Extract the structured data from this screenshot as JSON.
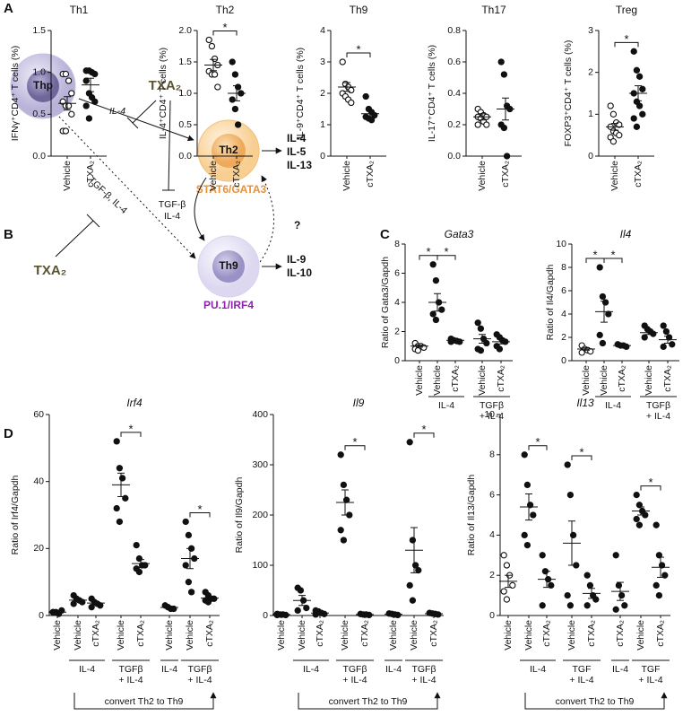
{
  "panel_labels": [
    "A",
    "B",
    "C",
    "D"
  ],
  "diagram": {
    "cells": [
      "Thp",
      "Th2",
      "Th9"
    ],
    "inhibitors": [
      "TXA₂",
      "TXA₂"
    ],
    "thp_th2": "IL-4",
    "th2_th9": [
      "TGF-β",
      "IL-4"
    ],
    "thp_th9": "TGF-β, IL-4",
    "th9_th2": "?",
    "transcription_factors": [
      "STAT6/GATA3",
      "PU.1/IRF4"
    ],
    "th2_cytokines": [
      "IL-4",
      "IL-5",
      "IL-13"
    ],
    "th9_cytokines": [
      "IL-9",
      "IL-10"
    ]
  },
  "chart_data": [
    {
      "type": "dotplot",
      "title": "Th1",
      "ylabel": "IFNγ⁺CD4⁺ T cells (%)",
      "categories": [
        "Vehicle",
        "cTXA₂"
      ],
      "markers": [
        "open",
        "filled"
      ],
      "points": [
        [
          0.98,
          0.98,
          0.9,
          0.75,
          0.65,
          0.6,
          0.6,
          0.5,
          0.3,
          0.3
        ],
        [
          1.02,
          1.02,
          1.0,
          0.98,
          0.9,
          0.75,
          0.7,
          0.65,
          0.6,
          0.45
        ]
      ],
      "means": [
        0.63,
        0.85
      ],
      "sems": [
        0.08,
        0.08
      ],
      "ylim": [
        0,
        1.5
      ],
      "yticks": [
        {
          "value": 0,
          "label": "0.0"
        },
        0.5,
        {
          "value": 1,
          "label": "1.0"
        },
        1.5
      ],
      "significance": []
    },
    {
      "type": "dotplot",
      "title": "Th2",
      "ylabel": "IL-4⁺CD4⁺ T cells (%)",
      "categories": [
        "Vehicle",
        "cTXA₂"
      ],
      "markers": [
        "open",
        "filled"
      ],
      "points": [
        [
          1.85,
          1.75,
          1.55,
          1.45,
          1.35,
          1.3,
          1.3,
          1.1
        ],
        [
          1.5,
          1.3,
          1.1,
          1.0,
          0.9,
          0.75,
          0.5
        ]
      ],
      "means": [
        1.45,
        1.0
      ],
      "sems": [
        0.09,
        0.12
      ],
      "ylim": [
        0,
        2
      ],
      "yticks": [
        {
          "value": 0,
          "label": "0.0"
        },
        0.5,
        {
          "value": 1,
          "label": "1.0"
        },
        1.5,
        {
          "value": 2,
          "label": "2.0"
        }
      ],
      "significance": [
        {
          "label": "*",
          "between": [
            0,
            1
          ]
        }
      ]
    },
    {
      "type": "dotplot",
      "title": "Th9",
      "ylabel": "IL-9⁺CD4⁺ T cells (%)",
      "categories": [
        "Vehicle",
        "cTXA₂"
      ],
      "markers": [
        "open",
        "filled"
      ],
      "points": [
        [
          3.0,
          2.3,
          2.2,
          2.1,
          2.0,
          1.9,
          1.8,
          1.7
        ],
        [
          1.9,
          1.5,
          1.4,
          1.3,
          1.25,
          1.2,
          1.15
        ]
      ],
      "means": [
        2.2,
        1.35
      ],
      "sems": [
        0.14,
        0.1
      ],
      "ylim": [
        0,
        4
      ],
      "yticks": [
        0,
        1,
        2,
        3,
        4
      ],
      "significance": [
        {
          "label": "*",
          "between": [
            0,
            1
          ]
        }
      ]
    },
    {
      "type": "dotplot",
      "title": "Th17",
      "ylabel": "IL-17⁺CD4⁺ T cells (%)",
      "categories": [
        "Vehicle",
        "cTXA₂"
      ],
      "markers": [
        "open",
        "filled"
      ],
      "points": [
        [
          0.3,
          0.28,
          0.26,
          0.25,
          0.25,
          0.24,
          0.22,
          0.2,
          0.2
        ],
        [
          0.6,
          0.52,
          0.32,
          0.3,
          0.2,
          0.18,
          0.0
        ]
      ],
      "means": [
        0.25,
        0.3
      ],
      "sems": [
        0.02,
        0.07
      ],
      "ylim": [
        0,
        0.8
      ],
      "yticks": [
        {
          "value": 0,
          "label": "0.0"
        },
        0.2,
        0.4,
        0.6,
        0.8
      ],
      "significance": []
    },
    {
      "type": "dotplot",
      "title": "Treg",
      "ylabel": "FOXP3⁺CD4⁺ T cells (%)",
      "categories": [
        "Vehicle",
        "cTXA₂"
      ],
      "markers": [
        "open",
        "filled"
      ],
      "points": [
        [
          1.2,
          1.0,
          0.8,
          0.75,
          0.7,
          0.6,
          0.55,
          0.5,
          0.45,
          0.35
        ],
        [
          2.5,
          2.05,
          1.9,
          1.6,
          1.5,
          1.3,
          1.2,
          1.0,
          0.9,
          0.7
        ]
      ],
      "means": [
        0.7,
        1.5
      ],
      "sems": [
        0.08,
        0.18
      ],
      "ylim": [
        0,
        3
      ],
      "yticks": [
        0,
        1,
        2,
        3
      ],
      "significance": [
        {
          "label": "*",
          "between": [
            0,
            1
          ]
        }
      ]
    },
    {
      "type": "dotplot",
      "title": "Gata3",
      "title_style": "italic",
      "ylabel": "Ratio of Gata3/Gapdh",
      "categories": [
        "Vehicle",
        "Vehicle",
        "cTXA₂",
        "Vehicle",
        "cTXA₂"
      ],
      "markers": [
        "open",
        "filled",
        "filled",
        "filled",
        "filled"
      ],
      "points": [
        [
          1.2,
          1.0,
          1.0,
          0.9,
          0.8,
          0.7
        ],
        [
          6.6,
          5.5,
          4.0,
          3.5,
          3.2,
          2.8
        ],
        [
          1.5,
          1.4,
          1.35,
          1.3,
          1.3
        ],
        [
          2.6,
          2.2,
          1.5,
          1.2,
          0.8,
          0.7
        ],
        [
          1.8,
          1.6,
          1.4,
          1.3,
          1.0,
          0.8
        ]
      ],
      "means": [
        1.0,
        4.0,
        1.4,
        1.5,
        1.3
      ],
      "sems": [
        0.07,
        0.6,
        0.05,
        0.3,
        0.15
      ],
      "ylim": [
        0,
        8
      ],
      "yticks": [
        0,
        2,
        4,
        6,
        8
      ],
      "groups": [
        {
          "label": [
            "IL-4"
          ],
          "categories": [
            1,
            2
          ]
        },
        {
          "label": [
            "TGFβ",
            "+ IL-4"
          ],
          "categories": [
            3,
            4
          ]
        }
      ],
      "significance": [
        {
          "label": "*",
          "between": [
            0,
            1
          ]
        },
        {
          "label": "*",
          "between": [
            1,
            2
          ]
        }
      ]
    },
    {
      "type": "dotplot",
      "title": "Il4",
      "title_style": "italic",
      "ylabel": "Ratio of Il4/Gapdh",
      "categories": [
        "Vehicle",
        "Vehicle",
        "cTXA₂",
        "Vehicle",
        "cTXA₂"
      ],
      "markers": [
        "open",
        "filled",
        "filled",
        "filled",
        "filled"
      ],
      "points": [
        [
          1.3,
          1.0,
          0.9,
          0.8,
          0.7
        ],
        [
          8.0,
          5.5,
          5.0,
          4.0,
          2.2,
          1.5
        ],
        [
          1.4,
          1.3,
          1.3,
          1.2
        ],
        [
          3.0,
          2.7,
          2.5,
          2.3,
          2.0
        ],
        [
          3.0,
          2.5,
          2.0,
          1.4,
          1.2
        ]
      ],
      "means": [
        1.0,
        4.2,
        1.3,
        2.4,
        1.8
      ],
      "sems": [
        0.1,
        0.9,
        0.05,
        0.15,
        0.3
      ],
      "ylim": [
        0,
        10
      ],
      "yticks": [
        0,
        2,
        4,
        6,
        8,
        10
      ],
      "groups": [
        {
          "label": [
            "IL-4"
          ],
          "categories": [
            1,
            2
          ]
        },
        {
          "label": [
            "TGFβ",
            "+ IL-4"
          ],
          "categories": [
            3,
            4
          ]
        }
      ],
      "significance": [
        {
          "label": "*",
          "between": [
            0,
            1
          ]
        },
        {
          "label": "*",
          "between": [
            1,
            2
          ]
        }
      ]
    },
    {
      "type": "dotplot",
      "title": "Irf4",
      "title_style": "italic",
      "ylabel": "Ratio of Irf4/Gapdh",
      "categories": [
        "Vehicle",
        "Vehicle",
        "cTXA₂",
        "Vehicle",
        "cTXA₂",
        "Vehicle",
        "Vehicle",
        "cTXA₂"
      ],
      "markers": [
        "filled",
        "filled",
        "filled",
        "filled",
        "filled",
        "filled",
        "filled",
        "filled"
      ],
      "points": [
        [
          1,
          1,
          0.5,
          1.5,
          1
        ],
        [
          6,
          5,
          4.5,
          4,
          3.5
        ],
        [
          5,
          4,
          3.5,
          3,
          2.5
        ],
        [
          52,
          44,
          41,
          35,
          32,
          28
        ],
        [
          21,
          17,
          15,
          15,
          14,
          13
        ],
        [
          3,
          2.5,
          2,
          2
        ],
        [
          28,
          24,
          20,
          17,
          15,
          10,
          7
        ],
        [
          7,
          6,
          5,
          5,
          4.5,
          4
        ]
      ],
      "means": [
        1,
        4.6,
        3.7,
        39,
        15.5,
        2.4,
        17,
        5.2
      ],
      "sems": [
        0.2,
        0.4,
        0.4,
        3.5,
        1.2,
        0.3,
        3,
        0.4
      ],
      "ylim": [
        0,
        60
      ],
      "yticks": [
        0,
        20,
        40,
        60
      ],
      "groups": [
        {
          "label": [
            "IL-4"
          ],
          "categories": [
            1,
            2
          ]
        },
        {
          "label": [
            "TGFβ",
            "+ IL-4"
          ],
          "categories": [
            3,
            4
          ]
        },
        {
          "label": [
            "IL-4"
          ],
          "categories": [
            5
          ]
        },
        {
          "label": [
            "TGFβ",
            "+ IL-4"
          ],
          "categories": [
            6,
            7
          ]
        }
      ],
      "significance": [
        {
          "label": "*",
          "between": [
            3,
            4
          ]
        },
        {
          "label": "*",
          "between": [
            6,
            7
          ]
        }
      ],
      "bracket": {
        "label": "convert Th2 to Th9",
        "categories": [
          1,
          7
        ]
      }
    },
    {
      "type": "dotplot",
      "title": "Il9",
      "title_style": "italic",
      "ylabel": "Ratio of Il9/Gapdh",
      "categories": [
        "Vehicle",
        "Vehicle",
        "cTXA₂",
        "Vehicle",
        "cTXA₂",
        "Vehicle",
        "Vehicle",
        "cTXA₂"
      ],
      "markers": [
        "filled",
        "filled",
        "filled",
        "filled",
        "filled",
        "filled",
        "filled",
        "filled"
      ],
      "points": [
        [
          3,
          2,
          2,
          1,
          1
        ],
        [
          55,
          50,
          30,
          15,
          10
        ],
        [
          10,
          8,
          5,
          3,
          2
        ],
        [
          320,
          260,
          230,
          200,
          170,
          150
        ],
        [
          3,
          2,
          2,
          1
        ],
        [
          4,
          3,
          2,
          1
        ],
        [
          345,
          150,
          100,
          90,
          60,
          30
        ],
        [
          5,
          4,
          3,
          2
        ]
      ],
      "means": [
        2,
        30,
        5,
        225,
        2,
        2.5,
        130,
        3.5
      ],
      "sems": [
        0.4,
        10,
        2,
        25,
        0.5,
        0.6,
        45,
        0.6
      ],
      "ylim": [
        0,
        400
      ],
      "yticks": [
        0,
        100,
        200,
        300,
        400
      ],
      "groups": [
        {
          "label": [
            "IL-4"
          ],
          "categories": [
            1,
            2
          ]
        },
        {
          "label": [
            "TGFβ",
            "+ IL-4"
          ],
          "categories": [
            3,
            4
          ]
        },
        {
          "label": [
            "IL-4"
          ],
          "categories": [
            5
          ]
        },
        {
          "label": [
            "TGFβ",
            "+ IL-4"
          ],
          "categories": [
            6,
            7
          ]
        }
      ],
      "significance": [
        {
          "label": "*",
          "between": [
            3,
            4
          ]
        },
        {
          "label": "*",
          "between": [
            6,
            7
          ]
        }
      ],
      "bracket": {
        "label": "convert Th2 to Th9",
        "categories": [
          1,
          7
        ]
      }
    },
    {
      "type": "dotplot",
      "title": "Il13",
      "title_style": "italic",
      "ylabel": "Ratio of Il13/Gapdh",
      "categories": [
        "Vehicle",
        "Vehicle",
        "cTXA₂",
        "Vehicle",
        "cTXA₂",
        "cTXA₂",
        "Vehicle",
        "cTXA₂"
      ],
      "markers": [
        "open",
        "filled",
        "filled",
        "filled",
        "filled",
        "filled",
        "filled",
        "filled"
      ],
      "points": [
        [
          3,
          2.5,
          2,
          1.5,
          1.2,
          0.8
        ],
        [
          8,
          6.5,
          5.5,
          5,
          4,
          3.5
        ],
        [
          3,
          2.2,
          1.8,
          1.5,
          0.5
        ],
        [
          7.5,
          6,
          4,
          2.5,
          1,
          0.5
        ],
        [
          2,
          1.5,
          1,
          0.8,
          0.5
        ],
        [
          3,
          1.5,
          1,
          0.5,
          0.3
        ],
        [
          6,
          5.5,
          5.2,
          5,
          4.8,
          4.5
        ],
        [
          4.5,
          3,
          2.5,
          2,
          1.5,
          1
        ]
      ],
      "means": [
        1.7,
        5.4,
        1.8,
        3.6,
        1.1,
        1.2,
        5.2,
        2.4
      ],
      "sems": [
        0.3,
        0.65,
        0.4,
        1.1,
        0.25,
        0.45,
        0.2,
        0.5
      ],
      "ylim": [
        0,
        10
      ],
      "yticks": [
        0,
        2,
        4,
        6,
        8,
        10
      ],
      "groups": [
        {
          "label": [
            "IL-4"
          ],
          "categories": [
            1,
            2
          ]
        },
        {
          "label": [
            "TGF",
            "+ IL-4"
          ],
          "categories": [
            3,
            4
          ]
        },
        {
          "label": [
            "IL-4"
          ],
          "categories": [
            5
          ]
        },
        {
          "label": [
            "TGF",
            "+ IL-4"
          ],
          "categories": [
            6,
            7
          ]
        }
      ],
      "significance": [
        {
          "label": "*",
          "between": [
            1,
            2
          ]
        },
        {
          "label": "*",
          "between": [
            3,
            4
          ]
        },
        {
          "label": "*",
          "between": [
            6,
            7
          ]
        }
      ],
      "bracket": {
        "label": "convert Th2 to Th9",
        "categories": [
          1,
          7
        ]
      }
    }
  ]
}
